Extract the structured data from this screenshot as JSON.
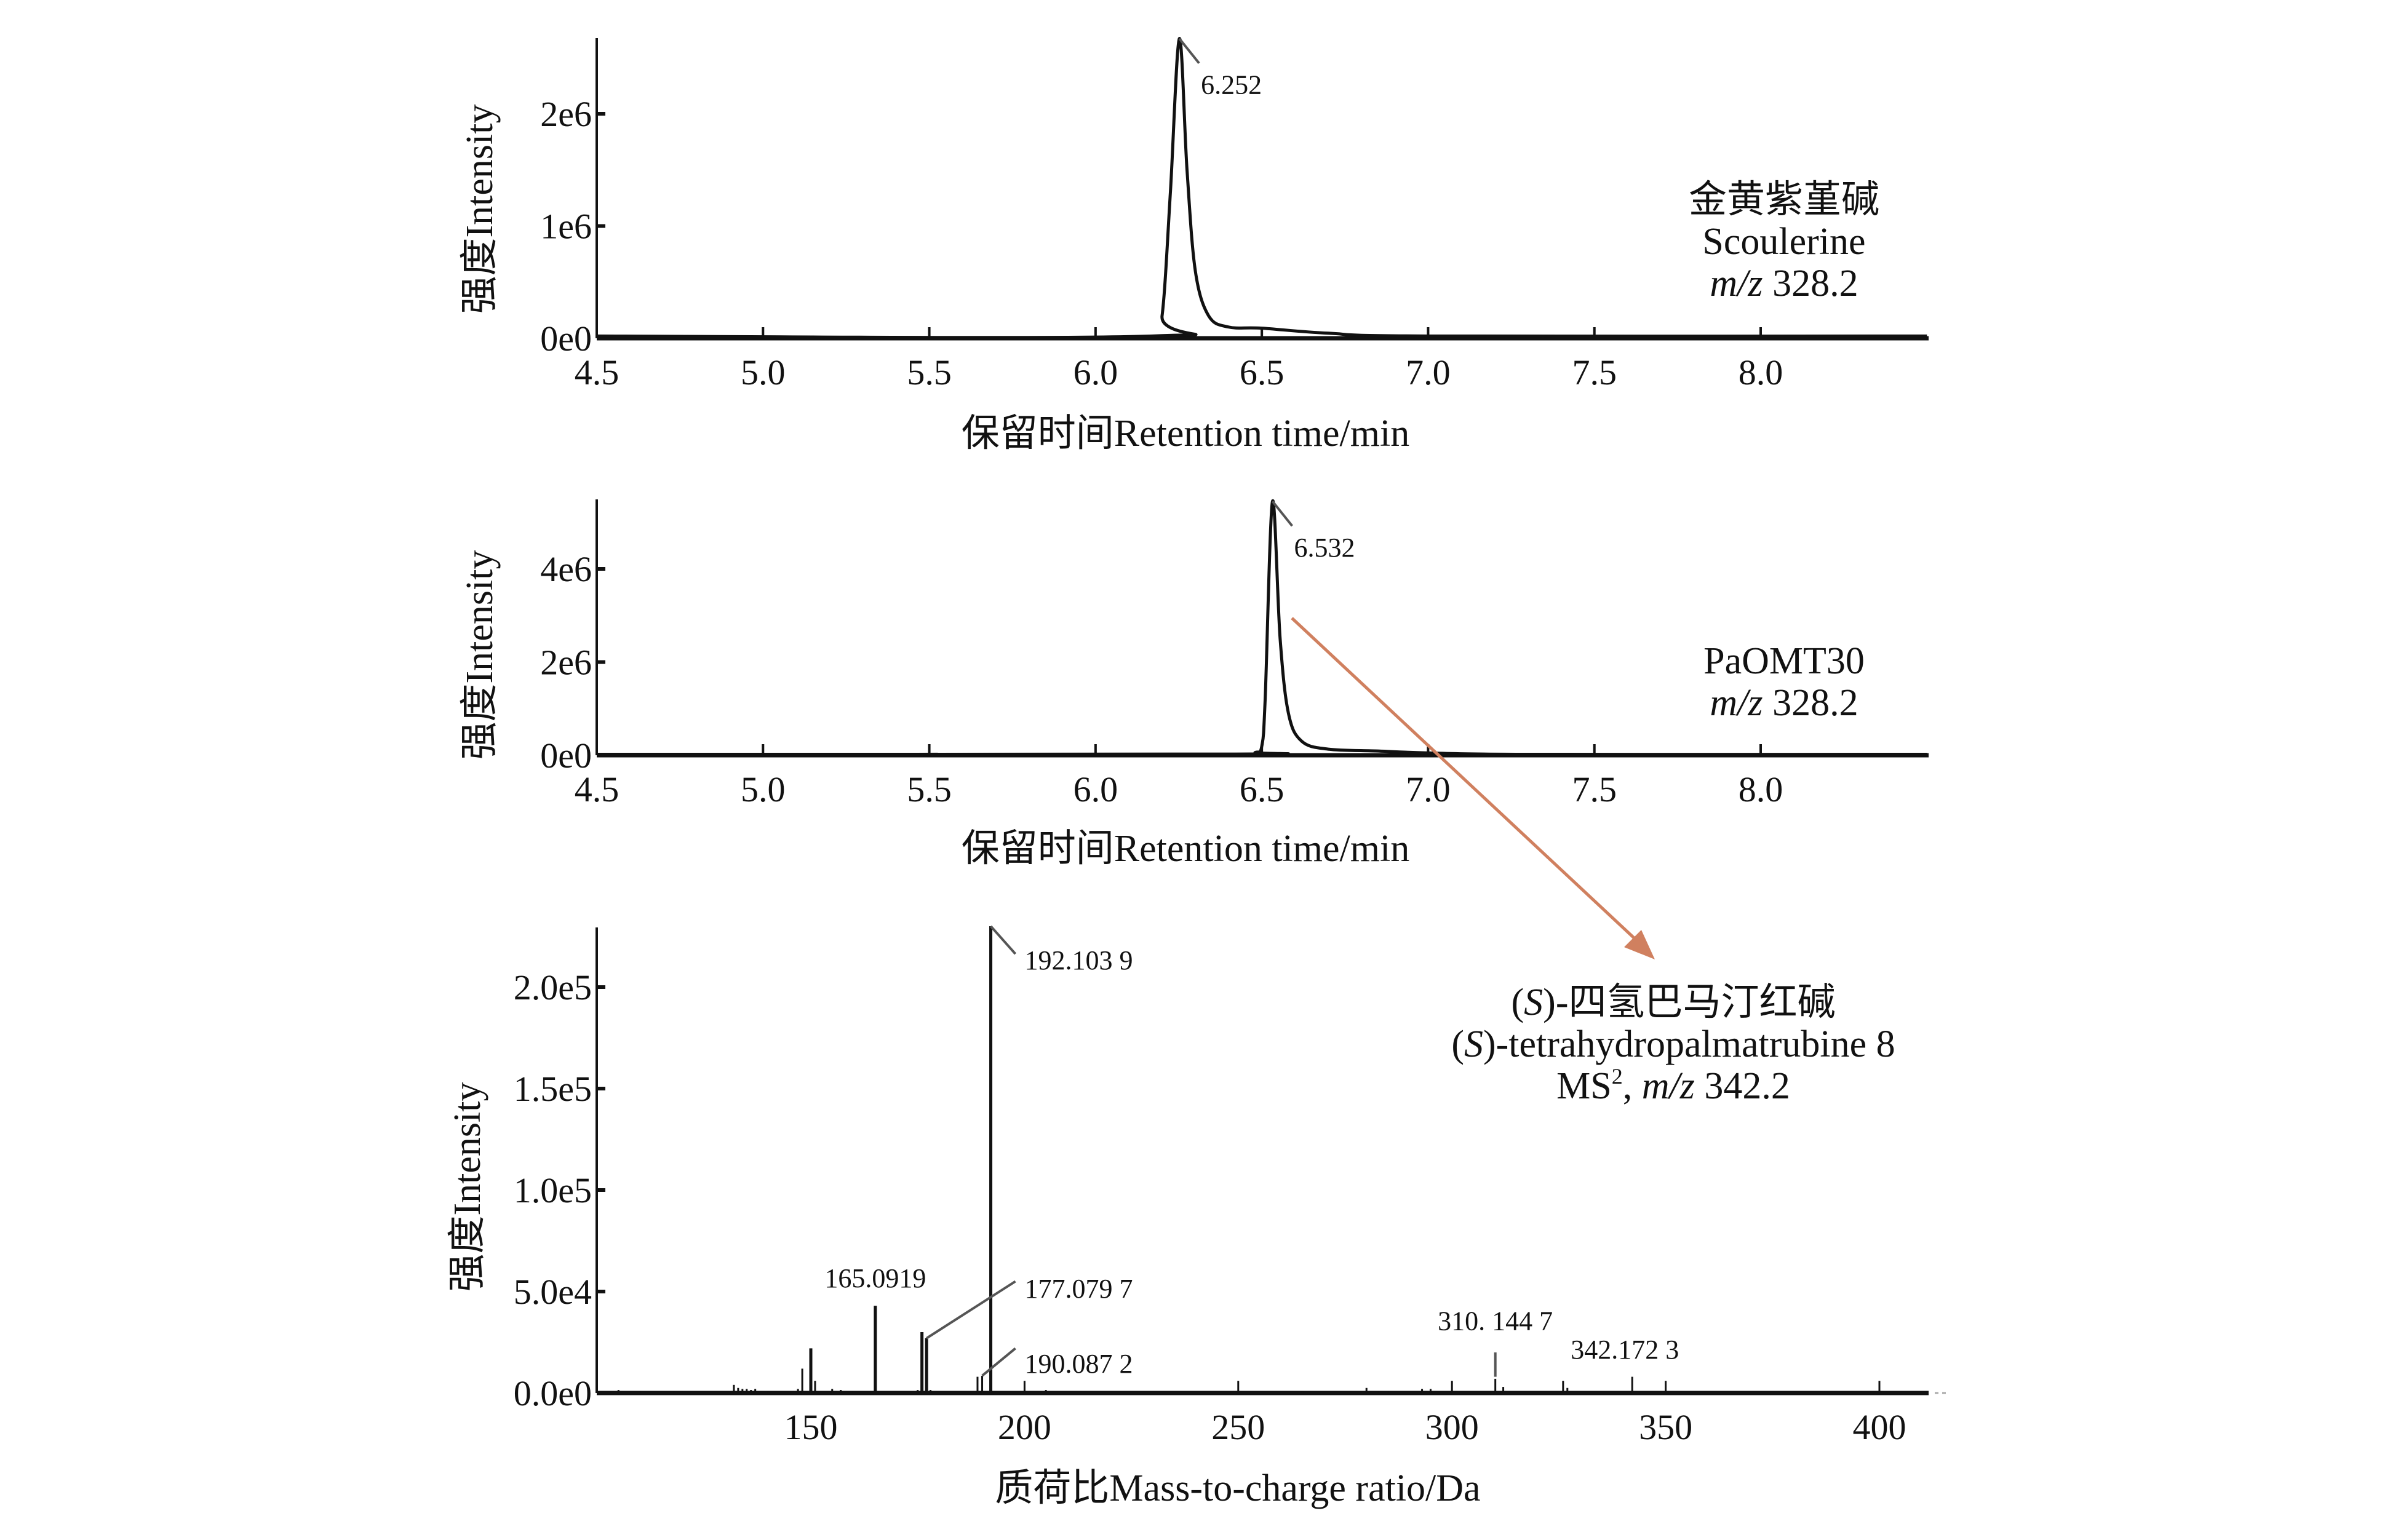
{
  "chart_data": [
    {
      "type": "line",
      "xlabel": "保留时间Retention time/min",
      "ylabel": "强度Intensity",
      "xlim": [
        4.5,
        8.5
      ],
      "ylim": [
        0,
        2700000
      ],
      "xticks": [
        4.5,
        5.0,
        5.5,
        6.0,
        6.5,
        7.0,
        7.5,
        8.0
      ],
      "xtick_labels": [
        "4.5",
        "5.0",
        "5.5",
        "6.0",
        "6.5",
        "7.0",
        "7.5",
        "8.0"
      ],
      "yticks": [
        0,
        1000000,
        2000000
      ],
      "ytick_labels": [
        "0e0",
        "1e6",
        "2e6"
      ],
      "series": [
        {
          "name": "Scoulerine",
          "points": [
            [
              4.5,
              20000
            ],
            [
              6.17,
              20000
            ],
            [
              6.2,
              200000
            ],
            [
              6.225,
              1300000
            ],
            [
              6.252,
              2670000
            ],
            [
              6.275,
              1500000
            ],
            [
              6.3,
              600000
            ],
            [
              6.34,
              200000
            ],
            [
              6.4,
              100000
            ],
            [
              6.5,
              90000
            ],
            [
              6.7,
              45000
            ],
            [
              7.0,
              20000
            ],
            [
              8.5,
              20000
            ]
          ]
        }
      ],
      "peak_label": {
        "x": 6.252,
        "text": "6.252"
      },
      "annotation": {
        "line1": "金黄紫堇碱",
        "line2": "Scoulerine",
        "mz_italic": "m/z",
        "mz_value": " 328.2"
      }
    },
    {
      "type": "line",
      "xlabel": "保留时间Retention time/min",
      "ylabel": "强度Intensity",
      "xlim": [
        4.5,
        8.5
      ],
      "ylim": [
        0,
        5500000
      ],
      "xticks": [
        4.5,
        5.0,
        5.5,
        6.0,
        6.5,
        7.0,
        7.5,
        8.0
      ],
      "xtick_labels": [
        "4.5",
        "5.0",
        "5.5",
        "6.0",
        "6.5",
        "7.0",
        "7.5",
        "8.0"
      ],
      "yticks": [
        0,
        2000000,
        4000000
      ],
      "ytick_labels": [
        "0e0",
        "2e6",
        "4e6"
      ],
      "series": [
        {
          "name": "PaOMT30",
          "points": [
            [
              4.5,
              20000
            ],
            [
              6.42,
              25000
            ],
            [
              6.48,
              60000
            ],
            [
              6.5,
              200000
            ],
            [
              6.51,
              1200000
            ],
            [
              6.532,
              5450000
            ],
            [
              6.555,
              2500000
            ],
            [
              6.58,
              900000
            ],
            [
              6.62,
              300000
            ],
            [
              6.7,
              130000
            ],
            [
              6.85,
              90000
            ],
            [
              7.0,
              50000
            ],
            [
              7.3,
              20000
            ],
            [
              8.5,
              20000
            ]
          ]
        }
      ],
      "peak_label": {
        "x": 6.532,
        "text": "6.532"
      },
      "annotation": {
        "line1": "PaOMT30",
        "mz_italic": "m/z",
        "mz_value": " 328.2"
      }
    },
    {
      "type": "bar",
      "xlabel": "质荷比Mass-to-charge ratio/Da",
      "ylabel": "强度Intensity",
      "xlim": [
        100,
        411
      ],
      "ylim": [
        0,
        230000
      ],
      "xticks": [
        150,
        200,
        250,
        300,
        350,
        400
      ],
      "xtick_labels": [
        "150",
        "200",
        "250",
        "300",
        "350",
        "400"
      ],
      "yticks": [
        0,
        50000,
        100000,
        150000,
        200000
      ],
      "ytick_labels": [
        "0.0e0",
        "5.0e4",
        "1.0e5",
        "1.5e5",
        "2.0e5"
      ],
      "peaks": [
        [
          105,
          1500
        ],
        [
          110,
          800
        ],
        [
          118,
          700
        ],
        [
          120,
          700
        ],
        [
          132,
          4000
        ],
        [
          133,
          2500
        ],
        [
          134,
          2000
        ],
        [
          135,
          2000
        ],
        [
          136,
          1500
        ],
        [
          137,
          2000
        ],
        [
          140,
          800
        ],
        [
          147,
          2000
        ],
        [
          148,
          12000
        ],
        [
          150,
          22000
        ],
        [
          151,
          6000
        ],
        [
          155,
          2000
        ],
        [
          157,
          1500
        ],
        [
          160,
          1000
        ],
        [
          165.0919,
          43000
        ],
        [
          175,
          1500
        ],
        [
          176,
          30000
        ],
        [
          177.0797,
          27000
        ],
        [
          178,
          1500
        ],
        [
          189,
          8000
        ],
        [
          190.0872,
          8500
        ],
        [
          192.1039,
          230000
        ],
        [
          200,
          6000
        ],
        [
          205,
          1500
        ],
        [
          250,
          6000
        ],
        [
          265,
          800
        ],
        [
          280,
          2500
        ],
        [
          283,
          1000
        ],
        [
          285,
          1000
        ],
        [
          293,
          2000
        ],
        [
          295,
          2000
        ],
        [
          300,
          6000
        ],
        [
          310.1447,
          7000
        ],
        [
          312,
          3000
        ],
        [
          326,
          6000
        ],
        [
          327,
          2500
        ],
        [
          342.1723,
          8000
        ],
        [
          350,
          6000
        ],
        [
          400,
          6000
        ]
      ],
      "peak_labels": [
        {
          "x": 192.1039,
          "text": "192.103 9"
        },
        {
          "x": 165.0919,
          "text": "165.0919"
        },
        {
          "x": 177.0797,
          "text": "177.079 7"
        },
        {
          "x": 190.0872,
          "text": "190.087 2"
        },
        {
          "x": 310.1447,
          "text": "310. 144 7"
        },
        {
          "x": 342.1723,
          "text": "342.172 3"
        }
      ],
      "annotation": {
        "line1_s": "S",
        "line1_rest": "-四氢巴马汀红碱",
        "line2_s": "S",
        "line2_rest": "-tetrahydropalmatrubine 8",
        "line3_ms": "MS",
        "line3_sup": "2",
        "line3_mz_italic": "m/z",
        "line3_value": " 342.2"
      }
    }
  ],
  "colors": {
    "axis": "#111111",
    "leader": "#555555",
    "arrow": "#d0805f"
  }
}
